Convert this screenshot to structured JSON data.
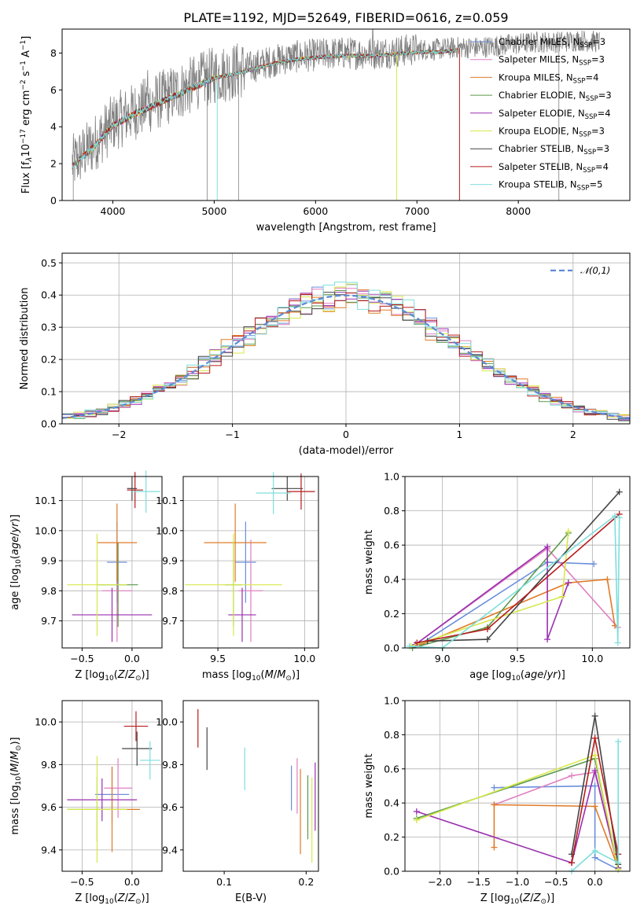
{
  "title": "PLATE=1192, MJD=52649, FIBERID=0616, z=0.059",
  "palette": [
    "#6a8fdb",
    "#e07fc0",
    "#e07b27",
    "#5a9a4a",
    "#9a2fb0",
    "#d7e84a",
    "#444444",
    "#b71c1c",
    "#7fdedc"
  ],
  "models": [
    "Chabrier MILES, N_SSP=3",
    "Salpeter MILES, N_SSP=3",
    "Kroupa MILES, N_SSP=4",
    "Chabrier ELODIE, N_SSP=3",
    "Salpeter ELODIE, N_SSP=4",
    "Kroupa ELODIE, N_SSP=3",
    "Chabrier STELIB, N_SSP=3",
    "Salpeter STELIB, N_SSP=4",
    "Kroupa STELIB, N_SSP=5"
  ],
  "chart_data": [
    {
      "id": "spectrum",
      "type": "line",
      "title": "PLATE=1192, MJD=52649, FIBERID=0616, z=0.059",
      "xlabel": "wavelength [Angstrom, rest frame]",
      "ylabel": "Flux [f_λ 10^-17 erg cm^-2 s^-1 A^-1]",
      "xlim": [
        3500,
        9100
      ],
      "ylim": [
        0,
        9.3
      ],
      "xticks": [
        "4000",
        "5000",
        "6000",
        "7000",
        "8000"
      ],
      "yticks": [
        "0",
        "2",
        "4",
        "6",
        "8"
      ],
      "data_color": "#808080",
      "data_x_range": [
        3600,
        8800
      ],
      "model_x_range": [
        3600,
        7420
      ],
      "envelope_x": [
        3600,
        3800,
        4000,
        4200,
        4400,
        4600,
        4800,
        5000,
        5200,
        5400,
        5600,
        5800,
        6000,
        6200,
        6400,
        6600,
        6800,
        7000,
        7200,
        7400,
        7600,
        7800,
        8000,
        8200,
        8400,
        8600,
        8800
      ],
      "envelope_y": [
        2.0,
        3.0,
        4.2,
        4.8,
        5.3,
        5.8,
        6.3,
        6.8,
        7.0,
        7.3,
        7.6,
        7.8,
        7.9,
        8.0,
        8.0,
        8.0,
        8.1,
        8.2,
        8.2,
        8.3,
        8.3,
        8.4,
        8.5,
        8.6,
        8.6,
        8.7,
        8.6
      ],
      "legend_position": "right",
      "grid": false
    },
    {
      "id": "residuals",
      "type": "histogram",
      "xlabel": "(data-model)/error",
      "ylabel": "Normed distribution",
      "xlim": [
        -2.5,
        2.5
      ],
      "ylim": [
        0,
        0.53
      ],
      "xticks": [
        "−2",
        "−1",
        "0",
        "1",
        "2"
      ],
      "yticks": [
        "0.0",
        "0.1",
        "0.2",
        "0.3",
        "0.4",
        "0.5"
      ],
      "grid": true,
      "bin_width": 0.1,
      "reference_label": "𝒩(0,1)",
      "reference_color": "#5b8bd6",
      "legend_position": "top-right"
    },
    {
      "id": "z-age",
      "type": "errorbar",
      "xlabel": "Z [log10(Z/Z⊙)]",
      "ylabel": "age  [log10(age/yr)]",
      "xlim": [
        -0.7,
        0.3
      ],
      "ylim": [
        9.61,
        10.18
      ],
      "xticks": [
        "−0.5",
        "0.0"
      ],
      "yticks": [
        "9.7",
        "9.8",
        "9.9",
        "10.0",
        "10.1"
      ],
      "grid": true,
      "points": [
        {
          "x": -0.15,
          "xerr": 0.1,
          "y": 9.895,
          "yerr": 0.135
        },
        {
          "x": -0.15,
          "xerr": 0.15,
          "y": 9.8,
          "yerr": 0.17
        },
        {
          "x": -0.15,
          "xerr": 0.2,
          "y": 9.96,
          "yerr": 0.13
        },
        {
          "x": -0.14,
          "xerr": 0.2,
          "y": 9.82,
          "yerr": 0.14
        },
        {
          "x": -0.2,
          "xerr": 0.4,
          "y": 9.72,
          "yerr": 0.09
        },
        {
          "x": -0.35,
          "xerr": 0.3,
          "y": 9.82,
          "yerr": 0.17
        },
        {
          "x": 0.0,
          "xerr": 0.05,
          "y": 10.14,
          "yerr": 0.04
        },
        {
          "x": 0.03,
          "xerr": 0.08,
          "y": 10.135,
          "yerr": 0.06
        },
        {
          "x": 0.14,
          "xerr": 0.14,
          "y": 10.13,
          "yerr": 0.07
        }
      ]
    },
    {
      "id": "mass-age",
      "type": "errorbar",
      "xlabel": "mass [log10(M/M⊙)]",
      "ylabel": "",
      "xlim": [
        9.3,
        10.08
      ],
      "ylim": [
        9.61,
        10.18
      ],
      "xticks": [
        "9.5",
        "10.0"
      ],
      "yticks": [
        "9.7",
        "9.8",
        "9.9",
        "10.0",
        "10.1"
      ],
      "grid": true,
      "points": [
        {
          "x": 9.66,
          "xerr": 0.06,
          "y": 9.895,
          "yerr": 0.135
        },
        {
          "x": 9.69,
          "xerr": 0.07,
          "y": 9.8,
          "yerr": 0.17
        },
        {
          "x": 9.6,
          "xerr": 0.18,
          "y": 9.96,
          "yerr": 0.13
        },
        {
          "x": 9.59,
          "xerr": 0.05,
          "y": 9.82,
          "yerr": 0.14
        },
        {
          "x": 9.64,
          "xerr": 0.08,
          "y": 9.72,
          "yerr": 0.09
        },
        {
          "x": 9.59,
          "xerr": 0.28,
          "y": 9.82,
          "yerr": 0.17
        },
        {
          "x": 9.9,
          "xerr": 0.09,
          "y": 10.14,
          "yerr": 0.04
        },
        {
          "x": 9.98,
          "xerr": 0.08,
          "y": 10.13,
          "yerr": 0.06
        },
        {
          "x": 9.82,
          "xerr": 0.1,
          "y": 10.125,
          "yerr": 0.07
        }
      ]
    },
    {
      "id": "age-weight",
      "type": "line",
      "xlabel": "age  [log10(age/yr)]",
      "ylabel": "mass weight",
      "xlim": [
        8.75,
        10.25
      ],
      "ylim": [
        0,
        1
      ],
      "xticks": [
        "9.0",
        "9.5",
        "10.0"
      ],
      "yticks": [
        "0.0",
        "0.2",
        "0.4",
        "0.6",
        "0.8",
        "1.0"
      ],
      "grid": true,
      "series": [
        {
          "x": [
            8.85,
            9.7,
            10.01
          ],
          "y": [
            0.02,
            0.5,
            0.49
          ]
        },
        {
          "x": [
            8.82,
            9.7,
            10.17
          ],
          "y": [
            0.02,
            0.58,
            0.12
          ]
        },
        {
          "x": [
            8.86,
            9.84,
            10.1,
            10.15
          ],
          "y": [
            0.02,
            0.38,
            0.4,
            0.13
          ]
        },
        {
          "x": [
            8.8,
            9.3,
            9.84
          ],
          "y": [
            0.0,
            0.12,
            0.67
          ]
        },
        {
          "x": [
            8.82,
            9.7,
            9.7,
            9.84
          ],
          "y": [
            0.02,
            0.59,
            0.05,
            0.38
          ]
        },
        {
          "x": [
            8.79,
            9.8,
            9.84
          ],
          "y": [
            0.01,
            0.3,
            0.68
          ]
        },
        {
          "x": [
            8.9,
            9.3,
            10.18
          ],
          "y": [
            0.04,
            0.05,
            0.91
          ]
        },
        {
          "x": [
            8.83,
            9.3,
            10.18
          ],
          "y": [
            0.03,
            0.11,
            0.78
          ]
        },
        {
          "x": [
            8.78,
            9.0,
            10.15,
            10.17,
            10.18
          ],
          "y": [
            0.01,
            0.0,
            0.77,
            0.03,
            0.76
          ]
        }
      ]
    },
    {
      "id": "z-mass",
      "type": "errorbar",
      "xlabel": "Z [log10(Z/Z⊙)]",
      "ylabel": "mass [log10(M/M⊙)]",
      "xlim": [
        -0.7,
        0.3
      ],
      "ylim": [
        9.3,
        10.1
      ],
      "xticks": [
        "−0.5",
        "0.0"
      ],
      "yticks": [
        "9.4",
        "9.6",
        "9.8",
        "10.0"
      ],
      "grid": true,
      "points": [
        {
          "x": -0.2,
          "xerr": 0.17,
          "y": 9.66,
          "yerr": 0.13
        },
        {
          "x": -0.14,
          "xerr": 0.14,
          "y": 9.69,
          "yerr": 0.14
        },
        {
          "x": -0.2,
          "xerr": 0.28,
          "y": 9.59,
          "yerr": 0.2
        },
        {
          "x": -0.35,
          "xerr": 0.3,
          "y": 9.59,
          "yerr": 0.15
        },
        {
          "x": -0.3,
          "xerr": 0.35,
          "y": 9.635,
          "yerr": 0.1
        },
        {
          "x": -0.35,
          "xerr": 0.3,
          "y": 9.59,
          "yerr": 0.25
        },
        {
          "x": 0.05,
          "xerr": 0.15,
          "y": 9.875,
          "yerr": 0.08
        },
        {
          "x": 0.04,
          "xerr": 0.12,
          "y": 9.98,
          "yerr": 0.07
        },
        {
          "x": 0.18,
          "xerr": 0.1,
          "y": 9.82,
          "yerr": 0.09
        }
      ]
    },
    {
      "id": "ebv-mass",
      "type": "errorbar",
      "xlabel": "E(B-V)",
      "ylabel": "",
      "xlim": [
        0.05,
        0.215
      ],
      "ylim": [
        9.3,
        10.1
      ],
      "xticks": [
        "0.1",
        "0.2"
      ],
      "yticks": [
        "9.4",
        "9.6",
        "9.8",
        "10.0"
      ],
      "grid": false,
      "points": [
        {
          "x": 0.182,
          "xerr": 0,
          "y": 9.69,
          "yerr": 0.105
        },
        {
          "x": 0.189,
          "xerr": 0,
          "y": 9.7,
          "yerr": 0.13
        },
        {
          "x": 0.193,
          "xerr": 0,
          "y": 9.58,
          "yerr": 0.2
        },
        {
          "x": 0.202,
          "xerr": 0,
          "y": 9.6,
          "yerr": 0.15
        },
        {
          "x": 0.211,
          "xerr": 0,
          "y": 9.65,
          "yerr": 0.16
        },
        {
          "x": 0.207,
          "xerr": 0,
          "y": 9.54,
          "yerr": 0.2
        },
        {
          "x": 0.079,
          "xerr": 0,
          "y": 9.875,
          "yerr": 0.1
        },
        {
          "x": 0.068,
          "xerr": 0,
          "y": 9.97,
          "yerr": 0.09
        },
        {
          "x": 0.125,
          "xerr": 0,
          "y": 9.78,
          "yerr": 0.1
        }
      ]
    },
    {
      "id": "z-weight",
      "type": "line",
      "xlabel": "Z [log10(Z/Z⊙)]",
      "ylabel": "mass weight",
      "xlim": [
        -2.45,
        0.45
      ],
      "ylim": [
        0,
        1
      ],
      "xticks": [
        "−2.0",
        "−1.5",
        "−1.0",
        "−0.5",
        "0.0"
      ],
      "yticks": [
        "0.0",
        "0.2",
        "0.4",
        "0.6",
        "0.8",
        "1.0"
      ],
      "grid": true,
      "series": [
        {
          "x": [
            -1.3,
            0.0,
            0.0,
            0.3
          ],
          "y": [
            0.49,
            0.5,
            0.08,
            0.01
          ]
        },
        {
          "x": [
            -1.3,
            -0.3,
            0.0,
            0.3
          ],
          "y": [
            0.39,
            0.56,
            0.58,
            0.02
          ]
        },
        {
          "x": [
            -1.3,
            -1.3,
            0.0,
            0.3
          ],
          "y": [
            0.14,
            0.39,
            0.38,
            0.02
          ]
        },
        {
          "x": [
            -2.3,
            0.0,
            0.3
          ],
          "y": [
            0.31,
            0.66,
            0.02
          ]
        },
        {
          "x": [
            -2.3,
            -0.3,
            0.0,
            0.3
          ],
          "y": [
            0.35,
            0.05,
            0.59,
            0.02
          ]
        },
        {
          "x": [
            -2.3,
            0.0,
            0.3
          ],
          "y": [
            0.3,
            0.68,
            0.01
          ]
        },
        {
          "x": [
            -0.3,
            0.0,
            0.3
          ],
          "y": [
            0.1,
            0.91,
            0.04
          ]
        },
        {
          "x": [
            -0.3,
            0.0,
            0.3
          ],
          "y": [
            0.05,
            0.78,
            0.1
          ]
        },
        {
          "x": [
            -0.3,
            0.0,
            0.3,
            0.3
          ],
          "y": [
            0.0,
            0.12,
            0.05,
            0.76
          ]
        }
      ]
    }
  ]
}
